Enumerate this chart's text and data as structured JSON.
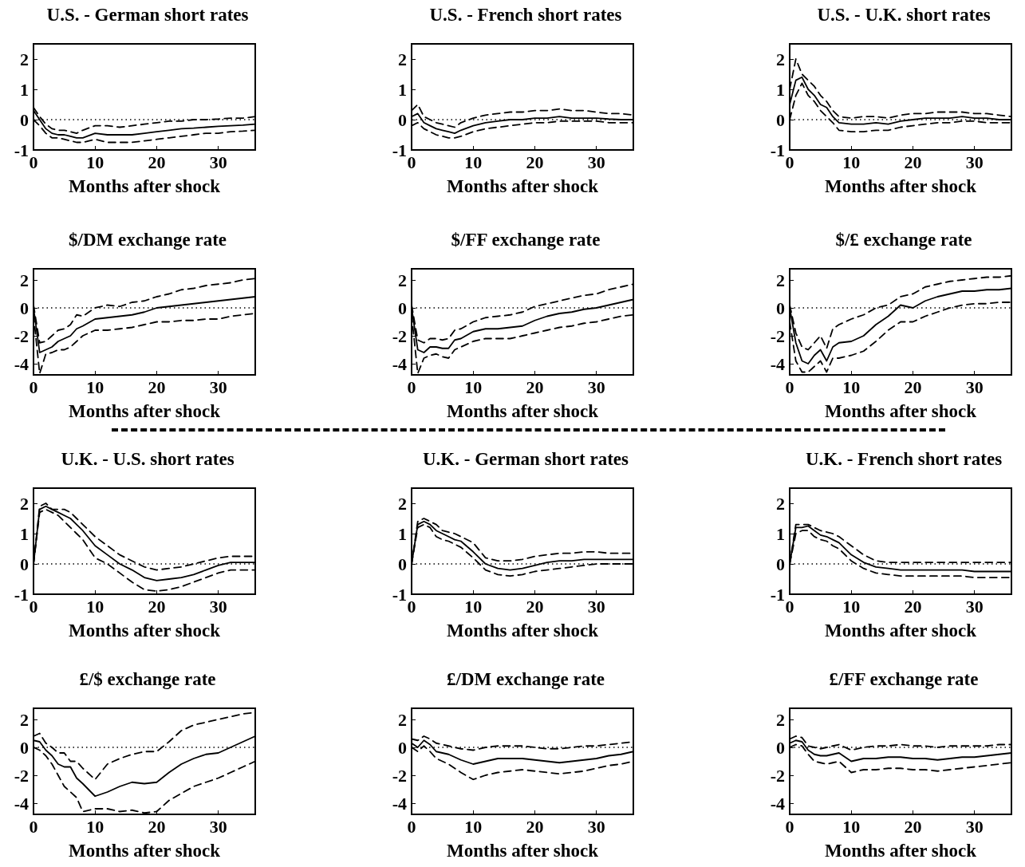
{
  "chart_data": [
    {
      "type": "line",
      "title": "U.S. - German short rates",
      "xlabel": "Months after shock",
      "x": [
        0,
        1,
        2,
        3,
        4,
        5,
        6,
        7,
        8,
        10,
        12,
        14,
        16,
        18,
        20,
        22,
        24,
        26,
        28,
        30,
        32,
        34,
        36
      ],
      "xlim": [
        0,
        36
      ],
      "xticks": [
        0,
        10,
        20,
        30
      ],
      "ylim": [
        -1,
        2.5
      ],
      "yticks": [
        -1,
        0,
        1,
        2
      ],
      "ref_lines": [
        {
          "axis": "y",
          "value": 0,
          "line_style": "dotted"
        }
      ],
      "series": [
        {
          "color": "#000000",
          "line_style": "solid",
          "values": [
            0.3,
            0,
            -0.3,
            -0.45,
            -0.5,
            -0.5,
            -0.55,
            -0.6,
            -0.6,
            -0.45,
            -0.5,
            -0.5,
            -0.5,
            -0.45,
            -0.4,
            -0.35,
            -0.3,
            -0.28,
            -0.25,
            -0.22,
            -0.2,
            -0.18,
            -0.15
          ]
        },
        {
          "color": "#000000",
          "line_style": "dashed",
          "values": [
            0.4,
            0.1,
            -0.15,
            -0.3,
            -0.35,
            -0.35,
            -0.4,
            -0.45,
            -0.35,
            -0.2,
            -0.2,
            -0.25,
            -0.2,
            -0.15,
            -0.1,
            -0.05,
            -0.05,
            0,
            0,
            0.02,
            0.05,
            0.05,
            0.1
          ]
        },
        {
          "color": "#000000",
          "line_style": "dashed",
          "values": [
            0,
            -0.2,
            -0.45,
            -0.6,
            -0.6,
            -0.65,
            -0.7,
            -0.75,
            -0.75,
            -0.65,
            -0.75,
            -0.75,
            -0.75,
            -0.7,
            -0.65,
            -0.6,
            -0.55,
            -0.5,
            -0.45,
            -0.45,
            -0.4,
            -0.38,
            -0.35
          ]
        }
      ]
    },
    {
      "type": "line",
      "title": "U.S. - French short rates",
      "xlabel": "Months after shock",
      "x": [
        0,
        1,
        2,
        3,
        4,
        5,
        6,
        7,
        8,
        10,
        12,
        14,
        16,
        18,
        20,
        22,
        24,
        26,
        28,
        30,
        32,
        34,
        36
      ],
      "xlim": [
        0,
        36
      ],
      "xticks": [
        0,
        10,
        20,
        30
      ],
      "ylim": [
        -1,
        2.5
      ],
      "yticks": [
        -1,
        0,
        1,
        2
      ],
      "ref_lines": [
        {
          "axis": "y",
          "value": 0,
          "line_style": "dotted"
        }
      ],
      "series": [
        {
          "color": "#000000",
          "line_style": "solid",
          "values": [
            0.1,
            0.2,
            -0.1,
            -0.2,
            -0.3,
            -0.35,
            -0.4,
            -0.45,
            -0.35,
            -0.2,
            -0.1,
            -0.05,
            0,
            0,
            0.05,
            0.05,
            0.1,
            0.05,
            0.05,
            0.05,
            0.02,
            0,
            0
          ]
        },
        {
          "color": "#000000",
          "line_style": "dashed",
          "values": [
            0.3,
            0.5,
            0.1,
            0,
            -0.1,
            -0.15,
            -0.2,
            -0.25,
            -0.1,
            0.05,
            0.15,
            0.2,
            0.25,
            0.25,
            0.3,
            0.3,
            0.35,
            0.3,
            0.3,
            0.25,
            0.2,
            0.2,
            0.15
          ]
        },
        {
          "color": "#000000",
          "line_style": "dashed",
          "values": [
            -0.2,
            -0.1,
            -0.3,
            -0.4,
            -0.5,
            -0.55,
            -0.6,
            -0.6,
            -0.55,
            -0.4,
            -0.3,
            -0.25,
            -0.2,
            -0.15,
            -0.1,
            -0.1,
            -0.05,
            -0.05,
            -0.05,
            -0.05,
            -0.1,
            -0.1,
            -0.1
          ]
        }
      ]
    },
    {
      "type": "line",
      "title": "U.S. - U.K. short rates",
      "xlabel": "Months after shock",
      "x": [
        0,
        1,
        2,
        3,
        4,
        5,
        6,
        7,
        8,
        10,
        12,
        14,
        16,
        18,
        20,
        22,
        24,
        26,
        28,
        30,
        32,
        34,
        36
      ],
      "xlim": [
        0,
        36
      ],
      "xticks": [
        0,
        10,
        20,
        30
      ],
      "ylim": [
        -1,
        2.5
      ],
      "yticks": [
        -1,
        0,
        1,
        2
      ],
      "ref_lines": [
        {
          "axis": "y",
          "value": 0,
          "line_style": "dotted"
        }
      ],
      "series": [
        {
          "color": "#000000",
          "line_style": "solid",
          "values": [
            0.5,
            1.3,
            1.4,
            1.0,
            0.8,
            0.5,
            0.4,
            0.1,
            -0.1,
            -0.15,
            -0.15,
            -0.1,
            -0.15,
            -0.05,
            0,
            0.05,
            0.05,
            0.05,
            0.1,
            0.05,
            0.05,
            0,
            0
          ]
        },
        {
          "color": "#000000",
          "line_style": "dashed",
          "values": [
            1.0,
            2.0,
            1.5,
            1.3,
            1.1,
            0.8,
            0.6,
            0.3,
            0.1,
            0.05,
            0.1,
            0.1,
            0.05,
            0.15,
            0.2,
            0.2,
            0.25,
            0.25,
            0.25,
            0.2,
            0.2,
            0.15,
            0.1
          ]
        },
        {
          "color": "#000000",
          "line_style": "dashed",
          "values": [
            0,
            0.8,
            1.2,
            0.8,
            0.6,
            0.3,
            0.1,
            -0.1,
            -0.35,
            -0.4,
            -0.4,
            -0.35,
            -0.35,
            -0.25,
            -0.2,
            -0.15,
            -0.1,
            -0.1,
            -0.05,
            -0.05,
            -0.1,
            -0.1,
            -0.1
          ]
        }
      ]
    },
    {
      "type": "line",
      "title": "$/DM exchange rate",
      "xlabel": "Months after shock",
      "x": [
        0,
        1,
        2,
        3,
        4,
        5,
        6,
        7,
        8,
        10,
        12,
        14,
        16,
        18,
        20,
        22,
        24,
        26,
        28,
        30,
        32,
        34,
        36
      ],
      "xlim": [
        0,
        36
      ],
      "xticks": [
        0,
        10,
        20,
        30
      ],
      "ylim": [
        -4.8,
        2.8
      ],
      "yticks": [
        -4,
        -2,
        0,
        2
      ],
      "ref_lines": [
        {
          "axis": "y",
          "value": 0,
          "line_style": "dotted"
        }
      ],
      "series": [
        {
          "color": "#000000",
          "line_style": "solid",
          "values": [
            0,
            -3.2,
            -3.0,
            -2.8,
            -2.4,
            -2.2,
            -2.0,
            -1.5,
            -1.3,
            -0.8,
            -0.7,
            -0.6,
            -0.5,
            -0.3,
            0,
            0.1,
            0.2,
            0.3,
            0.4,
            0.5,
            0.6,
            0.7,
            0.8
          ]
        },
        {
          "color": "#000000",
          "line_style": "dashed",
          "values": [
            0.2,
            -2.5,
            -2.4,
            -2.0,
            -1.6,
            -1.5,
            -1.2,
            -0.5,
            -0.6,
            0,
            0.2,
            0.1,
            0.4,
            0.5,
            0.8,
            1.0,
            1.3,
            1.4,
            1.6,
            1.7,
            1.8,
            2.0,
            2.1
          ]
        },
        {
          "color": "#000000",
          "line_style": "dashed",
          "values": [
            -0.5,
            -4.7,
            -3.3,
            -3.2,
            -3.0,
            -3.0,
            -2.8,
            -2.4,
            -2.0,
            -1.6,
            -1.6,
            -1.5,
            -1.4,
            -1.2,
            -1.0,
            -1.0,
            -0.9,
            -0.9,
            -0.8,
            -0.8,
            -0.6,
            -0.5,
            -0.4
          ]
        }
      ]
    },
    {
      "type": "line",
      "title": "$/FF exchange rate",
      "xlabel": "Months after shock",
      "x": [
        0,
        1,
        2,
        3,
        4,
        5,
        6,
        7,
        8,
        10,
        12,
        14,
        16,
        18,
        20,
        22,
        24,
        26,
        28,
        30,
        32,
        34,
        36
      ],
      "xlim": [
        0,
        36
      ],
      "xticks": [
        0,
        10,
        20,
        30
      ],
      "ylim": [
        -4.8,
        2.8
      ],
      "yticks": [
        -4,
        -2,
        0,
        2
      ],
      "ref_lines": [
        {
          "axis": "y",
          "value": 0,
          "line_style": "dotted"
        }
      ],
      "series": [
        {
          "color": "#000000",
          "line_style": "solid",
          "values": [
            0,
            -3.0,
            -3.2,
            -2.8,
            -2.8,
            -2.9,
            -2.9,
            -2.3,
            -2.2,
            -1.7,
            -1.5,
            -1.5,
            -1.4,
            -1.3,
            -0.9,
            -0.6,
            -0.4,
            -0.3,
            -0.1,
            0,
            0.2,
            0.4,
            0.6
          ]
        },
        {
          "color": "#000000",
          "line_style": "dashed",
          "values": [
            0.2,
            -2.3,
            -2.5,
            -2.2,
            -2.2,
            -2.3,
            -2.2,
            -1.6,
            -1.5,
            -1.0,
            -0.7,
            -0.6,
            -0.5,
            -0.3,
            0.1,
            0.3,
            0.5,
            0.7,
            0.9,
            1.0,
            1.3,
            1.5,
            1.7
          ]
        },
        {
          "color": "#000000",
          "line_style": "dashed",
          "values": [
            -0.5,
            -4.7,
            -3.6,
            -3.4,
            -3.3,
            -3.5,
            -3.6,
            -3.0,
            -2.8,
            -2.4,
            -2.2,
            -2.2,
            -2.2,
            -2.0,
            -1.8,
            -1.6,
            -1.4,
            -1.3,
            -1.1,
            -1.0,
            -0.8,
            -0.6,
            -0.5
          ]
        }
      ]
    },
    {
      "type": "line",
      "title": "$/£ exchange rate",
      "xlabel": "Months after shock",
      "x": [
        0,
        1,
        2,
        3,
        4,
        5,
        6,
        7,
        8,
        10,
        12,
        14,
        16,
        18,
        20,
        22,
        24,
        26,
        28,
        30,
        32,
        34,
        36
      ],
      "xlim": [
        0,
        36
      ],
      "xticks": [
        0,
        10,
        20,
        30
      ],
      "ylim": [
        -4.8,
        2.8
      ],
      "yticks": [
        -4,
        -2,
        0,
        2
      ],
      "ref_lines": [
        {
          "axis": "y",
          "value": 0,
          "line_style": "dotted"
        }
      ],
      "series": [
        {
          "color": "#000000",
          "line_style": "solid",
          "values": [
            0,
            -2.5,
            -3.8,
            -4.0,
            -3.4,
            -3.0,
            -3.8,
            -2.8,
            -2.5,
            -2.4,
            -2.0,
            -1.2,
            -0.6,
            0.2,
            0,
            0.5,
            0.8,
            1.0,
            1.2,
            1.2,
            1.3,
            1.3,
            1.4
          ]
        },
        {
          "color": "#000000",
          "line_style": "dashed",
          "values": [
            0.2,
            -1.8,
            -2.8,
            -3.0,
            -2.5,
            -2.0,
            -2.9,
            -1.5,
            -1.2,
            -0.8,
            -0.5,
            0,
            0.2,
            0.8,
            1.0,
            1.5,
            1.7,
            1.9,
            2.0,
            2.1,
            2.2,
            2.2,
            2.3
          ]
        },
        {
          "color": "#000000",
          "line_style": "dashed",
          "values": [
            -1,
            -3.8,
            -4.6,
            -4.6,
            -4.2,
            -3.8,
            -4.6,
            -3.6,
            -3.6,
            -3.4,
            -3.1,
            -2.4,
            -1.6,
            -1.0,
            -1.0,
            -0.6,
            -0.3,
            0,
            0.2,
            0.3,
            0.3,
            0.4,
            0.4
          ]
        }
      ]
    },
    {
      "type": "line",
      "title": "U.K. - U.S. short rates",
      "xlabel": "Months after shock",
      "x": [
        0,
        1,
        2,
        3,
        4,
        5,
        6,
        7,
        8,
        10,
        12,
        14,
        16,
        18,
        20,
        22,
        24,
        26,
        28,
        30,
        32,
        34,
        36
      ],
      "xlim": [
        0,
        36
      ],
      "xticks": [
        0,
        10,
        20,
        30
      ],
      "ylim": [
        -1,
        2.5
      ],
      "yticks": [
        -1,
        0,
        1,
        2
      ],
      "ref_lines": [
        {
          "axis": "y",
          "value": 0,
          "line_style": "dotted"
        }
      ],
      "series": [
        {
          "color": "#000000",
          "line_style": "solid",
          "values": [
            0,
            1.8,
            1.9,
            1.8,
            1.7,
            1.6,
            1.5,
            1.3,
            1.1,
            0.6,
            0.3,
            0,
            -0.2,
            -0.45,
            -0.55,
            -0.5,
            -0.45,
            -0.35,
            -0.2,
            -0.05,
            0.05,
            0.05,
            0.05
          ]
        },
        {
          "color": "#000000",
          "line_style": "dashed",
          "values": [
            0,
            1.9,
            2.0,
            1.8,
            1.8,
            1.8,
            1.7,
            1.5,
            1.3,
            0.9,
            0.6,
            0.3,
            0.1,
            -0.1,
            -0.2,
            -0.15,
            -0.1,
            0,
            0.1,
            0.2,
            0.25,
            0.25,
            0.25
          ]
        },
        {
          "color": "#000000",
          "line_style": "dashed",
          "values": [
            0,
            1.7,
            1.8,
            1.7,
            1.6,
            1.4,
            1.2,
            1.0,
            0.8,
            0.2,
            0,
            -0.3,
            -0.6,
            -0.85,
            -0.9,
            -0.85,
            -0.75,
            -0.6,
            -0.45,
            -0.3,
            -0.2,
            -0.2,
            -0.2
          ]
        }
      ]
    },
    {
      "type": "line",
      "title": "U.K. - German short rates",
      "xlabel": "Months after shock",
      "x": [
        0,
        1,
        2,
        3,
        4,
        5,
        6,
        7,
        8,
        10,
        12,
        14,
        16,
        18,
        20,
        22,
        24,
        26,
        28,
        30,
        32,
        34,
        36
      ],
      "xlim": [
        0,
        36
      ],
      "xticks": [
        0,
        10,
        20,
        30
      ],
      "ylim": [
        -1,
        2.5
      ],
      "yticks": [
        -1,
        0,
        1,
        2
      ],
      "ref_lines": [
        {
          "axis": "y",
          "value": 0,
          "line_style": "dotted"
        }
      ],
      "series": [
        {
          "color": "#000000",
          "line_style": "solid",
          "values": [
            0,
            1.3,
            1.4,
            1.3,
            1.1,
            1.0,
            0.9,
            0.8,
            0.75,
            0.4,
            0,
            -0.15,
            -0.2,
            -0.15,
            -0.05,
            0.05,
            0.1,
            0.1,
            0.15,
            0.15,
            0.15,
            0.15,
            0.15
          ]
        },
        {
          "color": "#000000",
          "line_style": "dashed",
          "values": [
            0,
            1.4,
            1.5,
            1.4,
            1.3,
            1.1,
            1.05,
            1.0,
            0.9,
            0.7,
            0.2,
            0.1,
            0.1,
            0.15,
            0.25,
            0.3,
            0.35,
            0.35,
            0.4,
            0.4,
            0.35,
            0.35,
            0.35
          ]
        },
        {
          "color": "#000000",
          "line_style": "dashed",
          "values": [
            0,
            1.2,
            1.3,
            1.2,
            0.9,
            0.8,
            0.75,
            0.65,
            0.55,
            0.2,
            -0.2,
            -0.35,
            -0.4,
            -0.35,
            -0.25,
            -0.2,
            -0.15,
            -0.1,
            -0.05,
            0,
            0,
            0,
            0
          ]
        }
      ]
    },
    {
      "type": "line",
      "title": "U.K. - French short rates",
      "xlabel": "Months after shock",
      "x": [
        0,
        1,
        2,
        3,
        4,
        5,
        6,
        7,
        8,
        10,
        12,
        14,
        16,
        18,
        20,
        22,
        24,
        26,
        28,
        30,
        32,
        34,
        36
      ],
      "xlim": [
        0,
        36
      ],
      "xticks": [
        0,
        10,
        20,
        30
      ],
      "ylim": [
        -1,
        2.5
      ],
      "yticks": [
        -1,
        0,
        1,
        2
      ],
      "ref_lines": [
        {
          "axis": "y",
          "value": 0,
          "line_style": "dotted"
        }
      ],
      "series": [
        {
          "color": "#000000",
          "line_style": "solid",
          "values": [
            0,
            1.2,
            1.2,
            1.25,
            1.1,
            0.95,
            0.9,
            0.8,
            0.7,
            0.3,
            0.05,
            -0.1,
            -0.15,
            -0.2,
            -0.2,
            -0.2,
            -0.2,
            -0.2,
            -0.2,
            -0.25,
            -0.25,
            -0.25,
            -0.25
          ]
        },
        {
          "color": "#000000",
          "line_style": "dashed",
          "values": [
            0,
            1.3,
            1.3,
            1.3,
            1.2,
            1.1,
            1.05,
            1.0,
            0.9,
            0.6,
            0.3,
            0.1,
            0.05,
            0.05,
            0.05,
            0.05,
            0.05,
            0.05,
            0.05,
            0.05,
            0.05,
            0.05,
            0.05
          ]
        },
        {
          "color": "#000000",
          "line_style": "dashed",
          "values": [
            0,
            1.0,
            1.1,
            1.1,
            0.9,
            0.8,
            0.75,
            0.6,
            0.5,
            0.1,
            -0.15,
            -0.3,
            -0.35,
            -0.4,
            -0.4,
            -0.4,
            -0.4,
            -0.4,
            -0.4,
            -0.45,
            -0.45,
            -0.45,
            -0.45
          ]
        }
      ]
    },
    {
      "type": "line",
      "title": "£/$ exchange rate",
      "xlabel": "Months after shock",
      "x": [
        0,
        1,
        2,
        3,
        4,
        5,
        6,
        7,
        8,
        10,
        12,
        14,
        16,
        18,
        20,
        22,
        24,
        26,
        28,
        30,
        32,
        34,
        36
      ],
      "xlim": [
        0,
        36
      ],
      "xticks": [
        0,
        10,
        20,
        30
      ],
      "ylim": [
        -4.8,
        2.8
      ],
      "yticks": [
        -4,
        -2,
        0,
        2
      ],
      "ref_lines": [
        {
          "axis": "y",
          "value": 0,
          "line_style": "dotted"
        }
      ],
      "series": [
        {
          "color": "#000000",
          "line_style": "solid",
          "values": [
            0.5,
            0.4,
            -0.2,
            -0.6,
            -1.2,
            -1.4,
            -1.4,
            -2.2,
            -2.6,
            -3.5,
            -3.2,
            -2.8,
            -2.5,
            -2.6,
            -2.5,
            -1.8,
            -1.2,
            -0.8,
            -0.5,
            -0.4,
            0,
            0.4,
            0.8
          ]
        },
        {
          "color": "#000000",
          "line_style": "dashed",
          "values": [
            0.8,
            1.0,
            0.3,
            0,
            -0.4,
            -0.4,
            -1.0,
            -1.0,
            -1.5,
            -2.3,
            -1.2,
            -0.8,
            -0.5,
            -0.3,
            -0.3,
            0.4,
            1.2,
            1.6,
            1.8,
            2.0,
            2.2,
            2.4,
            2.5
          ]
        },
        {
          "color": "#000000",
          "line_style": "dashed",
          "values": [
            0,
            -0.2,
            -0.6,
            -1.2,
            -2.0,
            -2.8,
            -3.2,
            -3.6,
            -4.6,
            -4.4,
            -4.4,
            -4.6,
            -4.5,
            -4.7,
            -4.6,
            -3.8,
            -3.3,
            -2.8,
            -2.5,
            -2.2,
            -1.8,
            -1.4,
            -1.0
          ]
        }
      ]
    },
    {
      "type": "line",
      "title": "£/DM exchange rate",
      "xlabel": "Months after shock",
      "x": [
        0,
        1,
        2,
        3,
        4,
        5,
        6,
        7,
        8,
        10,
        12,
        14,
        16,
        18,
        20,
        22,
        24,
        26,
        28,
        30,
        32,
        34,
        36
      ],
      "xlim": [
        0,
        36
      ],
      "xticks": [
        0,
        10,
        20,
        30
      ],
      "ylim": [
        -4.8,
        2.8
      ],
      "yticks": [
        -4,
        -2,
        0,
        2
      ],
      "ref_lines": [
        {
          "axis": "y",
          "value": 0,
          "line_style": "dotted"
        }
      ],
      "series": [
        {
          "color": "#000000",
          "line_style": "solid",
          "values": [
            0.3,
            0,
            0.5,
            0.2,
            -0.3,
            -0.4,
            -0.5,
            -0.7,
            -0.9,
            -1.2,
            -1.0,
            -0.8,
            -0.8,
            -0.8,
            -0.9,
            -1.0,
            -1.1,
            -1.0,
            -0.9,
            -0.8,
            -0.6,
            -0.5,
            -0.3
          ]
        },
        {
          "color": "#000000",
          "line_style": "dashed",
          "values": [
            0.6,
            0.5,
            0.8,
            0.6,
            0.3,
            0.2,
            0.1,
            0,
            -0.1,
            -0.2,
            0,
            0.1,
            0.1,
            0.1,
            0,
            -0.1,
            -0.1,
            0,
            0.1,
            0.1,
            0.2,
            0.3,
            0.4
          ]
        },
        {
          "color": "#000000",
          "line_style": "dashed",
          "values": [
            0,
            -0.3,
            0.1,
            -0.3,
            -0.8,
            -1.0,
            -1.2,
            -1.5,
            -1.8,
            -2.3,
            -2.0,
            -1.8,
            -1.7,
            -1.6,
            -1.7,
            -1.8,
            -1.9,
            -1.8,
            -1.7,
            -1.5,
            -1.3,
            -1.2,
            -1.0
          ]
        }
      ]
    },
    {
      "type": "line",
      "title": "£/FF exchange rate",
      "xlabel": "Months after shock",
      "x": [
        0,
        1,
        2,
        3,
        4,
        5,
        6,
        7,
        8,
        10,
        12,
        14,
        16,
        18,
        20,
        22,
        24,
        26,
        28,
        30,
        32,
        34,
        36
      ],
      "xlim": [
        0,
        36
      ],
      "xticks": [
        0,
        10,
        20,
        30
      ],
      "ylim": [
        -4.8,
        2.8
      ],
      "yticks": [
        -4,
        -2,
        0,
        2
      ],
      "ref_lines": [
        {
          "axis": "y",
          "value": 0,
          "line_style": "dotted"
        }
      ],
      "series": [
        {
          "color": "#000000",
          "line_style": "solid",
          "values": [
            0.3,
            0.5,
            0.4,
            -0.2,
            -0.5,
            -0.6,
            -0.6,
            -0.5,
            -0.4,
            -1.0,
            -0.8,
            -0.8,
            -0.7,
            -0.7,
            -0.8,
            -0.8,
            -0.9,
            -0.8,
            -0.7,
            -0.7,
            -0.6,
            -0.5,
            -0.4
          ]
        },
        {
          "color": "#000000",
          "line_style": "dashed",
          "values": [
            0.6,
            0.8,
            0.7,
            0.1,
            0,
            -0.1,
            0,
            0.1,
            0.2,
            -0.2,
            0,
            0.1,
            0.1,
            0.2,
            0.1,
            0.1,
            0,
            0.1,
            0.1,
            0.1,
            0.1,
            0.2,
            0.2
          ]
        },
        {
          "color": "#000000",
          "line_style": "dashed",
          "values": [
            0,
            0.2,
            0.1,
            -0.5,
            -1.0,
            -1.1,
            -1.2,
            -1.1,
            -1.0,
            -1.8,
            -1.6,
            -1.6,
            -1.5,
            -1.5,
            -1.6,
            -1.6,
            -1.7,
            -1.6,
            -1.5,
            -1.4,
            -1.3,
            -1.2,
            -1.1
          ]
        }
      ]
    }
  ]
}
